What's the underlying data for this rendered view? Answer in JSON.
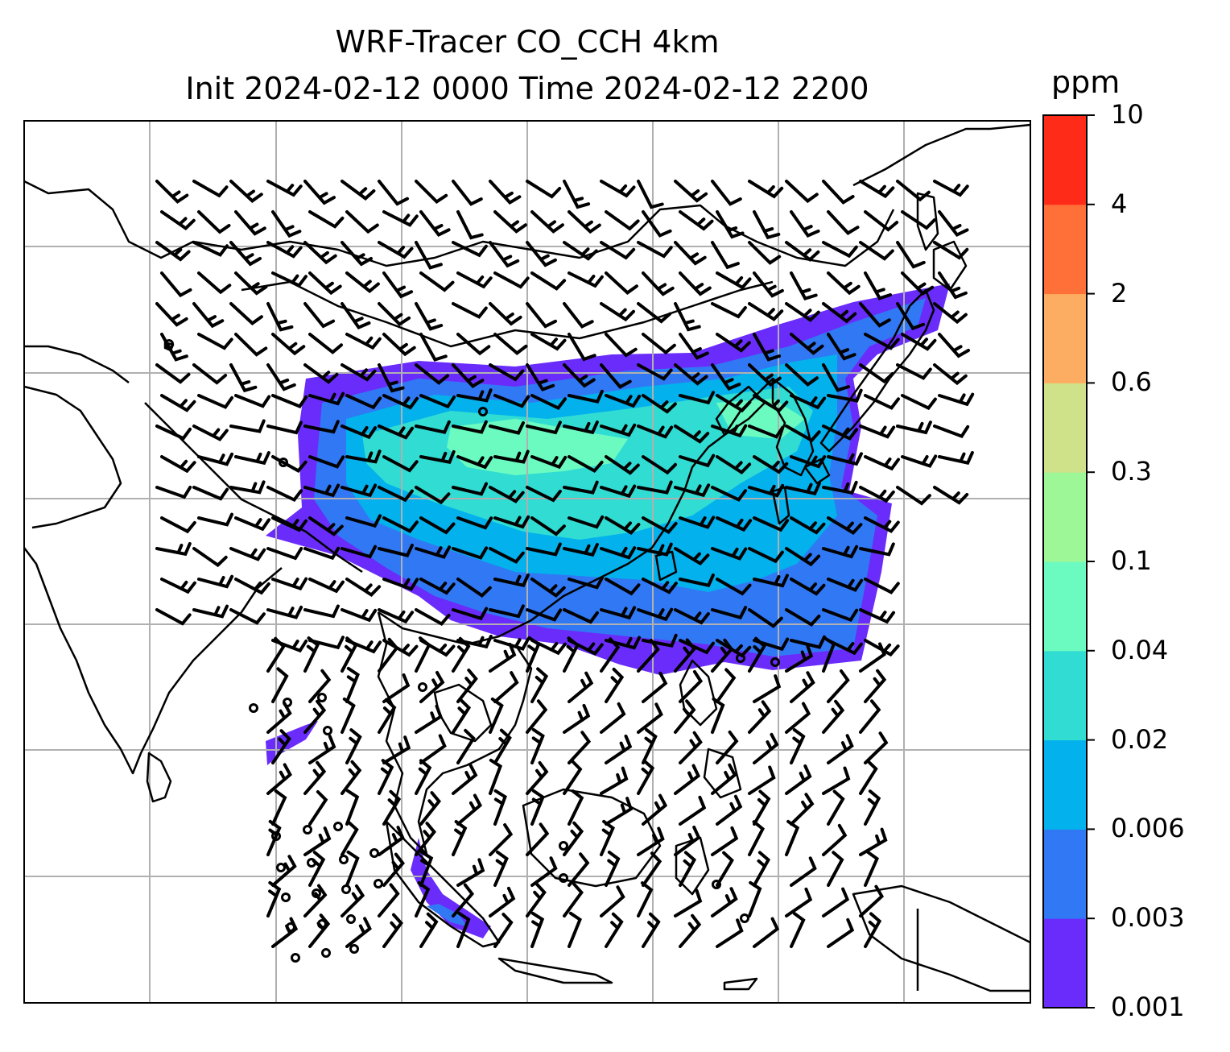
{
  "title": {
    "line1": "WRF-Tracer CO_CCH 4km",
    "line2": "Init 2024-02-12 0000 Time 2024-02-12 2200"
  },
  "colorbar": {
    "unit": "ppm",
    "levels": [
      "0.001",
      "0.003",
      "0.006",
      "0.02",
      "0.04",
      "0.1",
      "0.3",
      "0.6",
      "2",
      "4",
      "10"
    ],
    "colors": [
      "#6a2cfa",
      "#3178f5",
      "#03b1ec",
      "#31dcd3",
      "#6bfbc0",
      "#9ef796",
      "#cfe28a",
      "#fdad61",
      "#ff7038",
      "#ff2b19"
    ]
  },
  "map": {
    "gridlines": true,
    "gridline_color": "#b0b0b0",
    "coastline_color": "#000000",
    "barb_color": "#000000"
  }
}
